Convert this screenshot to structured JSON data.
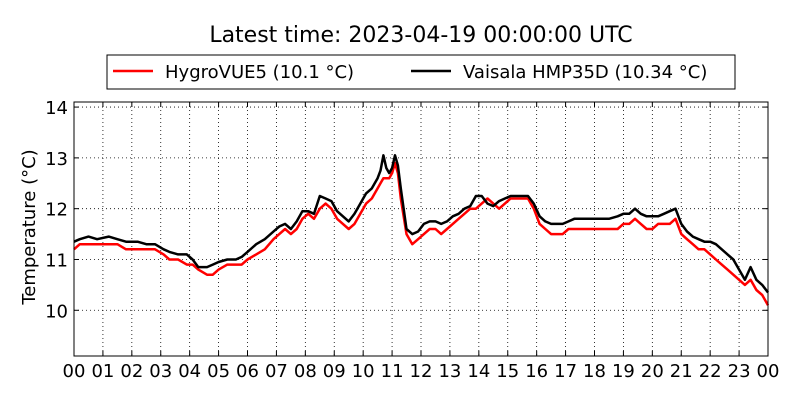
{
  "chart_data": {
    "type": "line",
    "title": "Latest time: 2023-04-19 00:00:00 UTC",
    "xlabel": "",
    "ylabel": "Temperature (°C)",
    "xlim": [
      0,
      24
    ],
    "ylim": [
      9.1,
      14.1
    ],
    "grid": true,
    "legend_placement": "top-center",
    "x_tick_labels": [
      "00",
      "01",
      "02",
      "03",
      "04",
      "05",
      "06",
      "07",
      "08",
      "09",
      "10",
      "11",
      "12",
      "13",
      "14",
      "15",
      "16",
      "17",
      "18",
      "19",
      "20",
      "21",
      "22",
      "23",
      "00"
    ],
    "y_tick_values": [
      10,
      11,
      12,
      13,
      14
    ],
    "y_tick_labels": [
      "10",
      "11",
      "12",
      "13",
      "14"
    ],
    "series": [
      {
        "name": "HygroVUE5 (10.1 °C)",
        "color": "#ff0000",
        "x": [
          0,
          0.2,
          0.5,
          0.8,
          1.2,
          1.5,
          1.8,
          2.2,
          2.5,
          2.8,
          3.1,
          3.3,
          3.6,
          3.9,
          4.1,
          4.3,
          4.6,
          4.8,
          5.0,
          5.3,
          5.6,
          5.8,
          6.0,
          6.3,
          6.6,
          6.9,
          7.1,
          7.3,
          7.5,
          7.7,
          7.9,
          8.1,
          8.3,
          8.5,
          8.7,
          8.9,
          9.1,
          9.3,
          9.5,
          9.7,
          9.9,
          10.1,
          10.3,
          10.5,
          10.6,
          10.7,
          10.8,
          10.9,
          11.0,
          11.1,
          11.2,
          11.3,
          11.5,
          11.7,
          11.9,
          12.1,
          12.3,
          12.5,
          12.7,
          12.9,
          13.1,
          13.3,
          13.5,
          13.7,
          13.9,
          14.1,
          14.3,
          14.5,
          14.7,
          14.9,
          15.1,
          15.3,
          15.5,
          15.7,
          15.9,
          16.1,
          16.3,
          16.5,
          16.7,
          16.9,
          17.1,
          17.3,
          17.5,
          17.7,
          17.9,
          18.2,
          18.5,
          18.8,
          19.0,
          19.2,
          19.4,
          19.6,
          19.8,
          20.0,
          20.2,
          20.4,
          20.6,
          20.8,
          21.0,
          21.2,
          21.4,
          21.6,
          21.8,
          22.0,
          22.2,
          22.4,
          22.6,
          22.8,
          23.0,
          23.2,
          23.4,
          23.6,
          23.8,
          24.0
        ],
        "y": [
          11.2,
          11.3,
          11.3,
          11.3,
          11.3,
          11.3,
          11.2,
          11.2,
          11.2,
          11.2,
          11.1,
          11.0,
          11.0,
          10.9,
          10.9,
          10.8,
          10.7,
          10.7,
          10.8,
          10.9,
          10.9,
          10.9,
          11.0,
          11.1,
          11.2,
          11.4,
          11.5,
          11.6,
          11.5,
          11.6,
          11.8,
          11.9,
          11.8,
          12.0,
          12.1,
          12.0,
          11.8,
          11.7,
          11.6,
          11.7,
          11.9,
          12.1,
          12.2,
          12.4,
          12.5,
          12.6,
          12.6,
          12.6,
          12.7,
          12.9,
          12.7,
          12.2,
          11.5,
          11.3,
          11.4,
          11.5,
          11.6,
          11.6,
          11.5,
          11.6,
          11.7,
          11.8,
          11.9,
          12.0,
          12.0,
          12.1,
          12.2,
          12.1,
          12.0,
          12.1,
          12.2,
          12.2,
          12.2,
          12.2,
          12.0,
          11.7,
          11.6,
          11.5,
          11.5,
          11.5,
          11.6,
          11.6,
          11.6,
          11.6,
          11.6,
          11.6,
          11.6,
          11.6,
          11.7,
          11.7,
          11.8,
          11.7,
          11.6,
          11.6,
          11.7,
          11.7,
          11.7,
          11.8,
          11.5,
          11.4,
          11.3,
          11.2,
          11.2,
          11.1,
          11.0,
          10.9,
          10.8,
          10.7,
          10.6,
          10.5,
          10.6,
          10.4,
          10.3,
          10.1
        ]
      },
      {
        "name": "Vaisala HMP35D (10.34 °C)",
        "color": "#000000",
        "x": [
          0,
          0.2,
          0.5,
          0.8,
          1.2,
          1.5,
          1.8,
          2.2,
          2.5,
          2.8,
          3.1,
          3.3,
          3.6,
          3.9,
          4.1,
          4.3,
          4.6,
          4.8,
          5.0,
          5.3,
          5.6,
          5.8,
          6.0,
          6.3,
          6.6,
          6.9,
          7.1,
          7.3,
          7.5,
          7.7,
          7.9,
          8.1,
          8.3,
          8.5,
          8.7,
          8.9,
          9.1,
          9.3,
          9.5,
          9.7,
          9.9,
          10.1,
          10.3,
          10.5,
          10.6,
          10.7,
          10.8,
          10.9,
          11.0,
          11.1,
          11.2,
          11.3,
          11.5,
          11.7,
          11.9,
          12.1,
          12.3,
          12.5,
          12.7,
          12.9,
          13.1,
          13.3,
          13.5,
          13.7,
          13.9,
          14.1,
          14.3,
          14.5,
          14.7,
          14.9,
          15.1,
          15.3,
          15.5,
          15.7,
          15.9,
          16.1,
          16.3,
          16.5,
          16.7,
          16.9,
          17.1,
          17.3,
          17.5,
          17.7,
          17.9,
          18.2,
          18.5,
          18.8,
          19.0,
          19.2,
          19.4,
          19.6,
          19.8,
          20.0,
          20.2,
          20.4,
          20.6,
          20.8,
          21.0,
          21.2,
          21.4,
          21.6,
          21.8,
          22.0,
          22.2,
          22.4,
          22.6,
          22.8,
          23.0,
          23.2,
          23.4,
          23.6,
          23.8,
          24.0
        ],
        "y": [
          11.35,
          11.4,
          11.45,
          11.4,
          11.45,
          11.4,
          11.35,
          11.35,
          11.3,
          11.3,
          11.2,
          11.15,
          11.1,
          11.1,
          11.0,
          10.85,
          10.85,
          10.9,
          10.95,
          11.0,
          11.0,
          11.05,
          11.15,
          11.3,
          11.4,
          11.55,
          11.65,
          11.7,
          11.6,
          11.75,
          11.95,
          11.95,
          11.9,
          12.25,
          12.2,
          12.15,
          11.95,
          11.85,
          11.75,
          11.9,
          12.1,
          12.3,
          12.4,
          12.6,
          12.75,
          13.05,
          12.8,
          12.7,
          12.8,
          13.05,
          12.85,
          12.4,
          11.6,
          11.5,
          11.55,
          11.7,
          11.75,
          11.75,
          11.7,
          11.75,
          11.85,
          11.9,
          12.0,
          12.05,
          12.25,
          12.25,
          12.1,
          12.05,
          12.15,
          12.2,
          12.25,
          12.25,
          12.25,
          12.25,
          12.1,
          11.85,
          11.75,
          11.7,
          11.7,
          11.7,
          11.75,
          11.8,
          11.8,
          11.8,
          11.8,
          11.8,
          11.8,
          11.85,
          11.9,
          11.9,
          12.0,
          11.9,
          11.85,
          11.85,
          11.85,
          11.9,
          11.95,
          12.0,
          11.7,
          11.55,
          11.45,
          11.4,
          11.35,
          11.35,
          11.3,
          11.2,
          11.1,
          11.0,
          10.8,
          10.6,
          10.85,
          10.6,
          10.5,
          10.35
        ]
      }
    ]
  }
}
